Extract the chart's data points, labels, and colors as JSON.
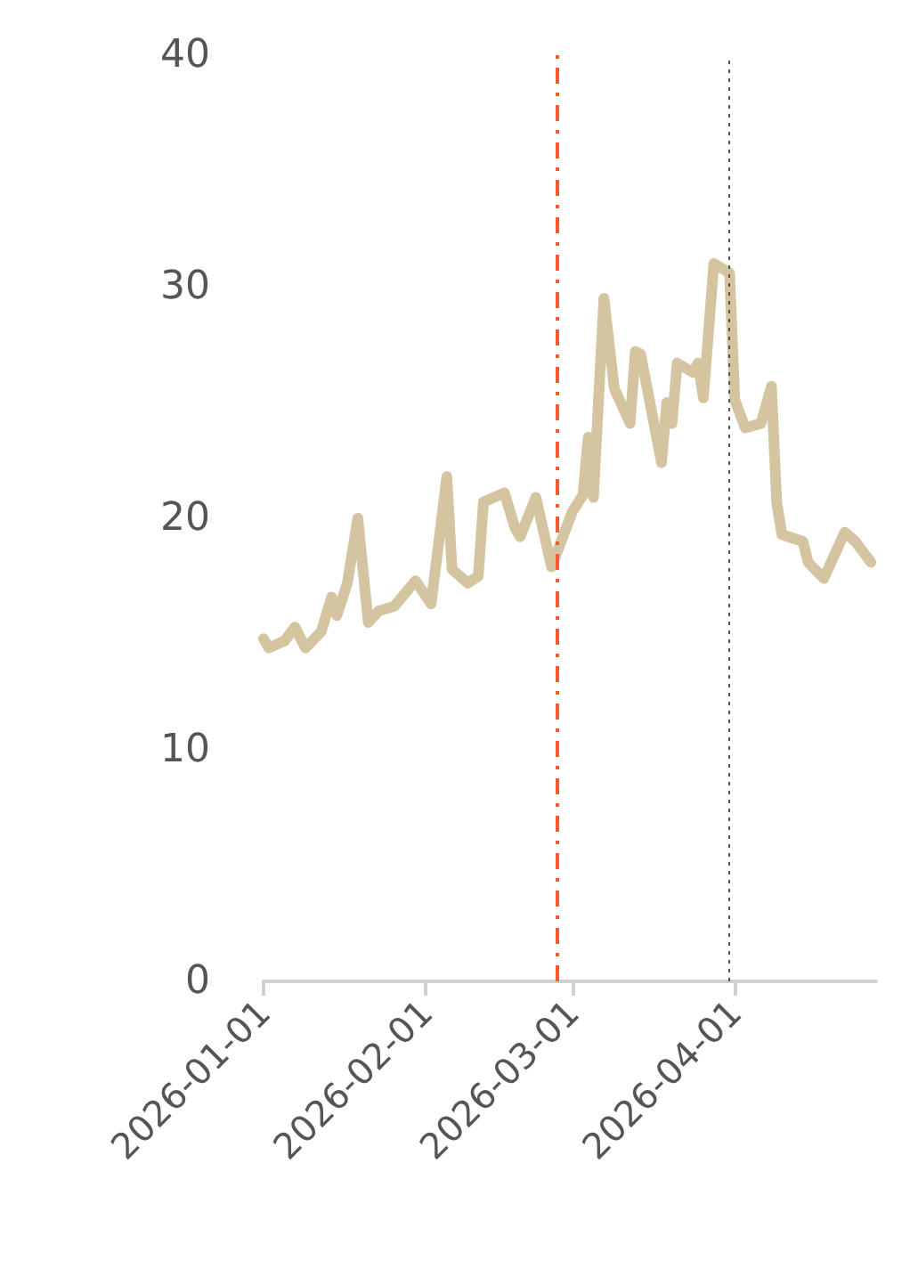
{
  "chart_data": {
    "type": "line",
    "x": [
      "2026-01-01",
      "2026-01-02",
      "2026-01-05",
      "2026-01-07",
      "2026-01-09",
      "2026-01-12",
      "2026-01-14",
      "2026-01-15",
      "2026-01-17",
      "2026-01-19",
      "2026-01-21",
      "2026-01-23",
      "2026-01-26",
      "2026-01-30",
      "2026-02-02",
      "2026-02-05",
      "2026-02-06",
      "2026-02-09",
      "2026-02-11",
      "2026-02-12",
      "2026-02-16",
      "2026-02-18",
      "2026-02-19",
      "2026-02-22",
      "2026-02-25",
      "2026-03-01",
      "2026-03-03",
      "2026-03-04",
      "2026-03-05",
      "2026-03-07",
      "2026-03-09",
      "2026-03-12",
      "2026-03-13",
      "2026-03-14",
      "2026-03-18",
      "2026-03-19",
      "2026-03-20",
      "2026-03-21",
      "2026-03-24",
      "2026-03-25",
      "2026-03-26",
      "2026-03-28",
      "2026-03-31",
      "2026-04-01",
      "2026-04-03",
      "2026-04-06",
      "2026-04-08",
      "2026-04-09",
      "2026-04-10",
      "2026-04-14",
      "2026-04-15",
      "2026-04-18",
      "2026-04-22",
      "2026-04-24",
      "2026-04-27"
    ],
    "series": [
      {
        "color": "#d4c4a0",
        "values": [
          14.8,
          14.4,
          14.7,
          15.3,
          14.4,
          15.1,
          16.6,
          15.8,
          17.2,
          20.0,
          15.5,
          16.0,
          16.2,
          17.3,
          16.3,
          21.8,
          17.8,
          17.2,
          17.5,
          20.7,
          21.1,
          19.6,
          19.2,
          20.9,
          17.9,
          20.3,
          21.0,
          23.5,
          20.9,
          29.5,
          25.6,
          24.1,
          27.2,
          27.1,
          22.4,
          25.0,
          24.1,
          26.7,
          26.3,
          26.7,
          25.2,
          31.0,
          30.6,
          25.1,
          23.9,
          24.1,
          25.7,
          20.7,
          19.3,
          19.0,
          18.1,
          17.4,
          19.4,
          19.0,
          18.1
        ]
      }
    ],
    "xlim": [
      "2026-01-01",
      "2026-04-28"
    ],
    "xticks": [
      "2026-01-01",
      "2026-02-01",
      "2026-03-01",
      "2026-04-01"
    ],
    "ylim": [
      0,
      40
    ],
    "yticks": [
      0,
      10,
      20,
      30,
      40
    ],
    "grid": false,
    "marker": "none",
    "line_style": "solid",
    "ref_lines": [
      {
        "axis": "x",
        "value": "2026-02-26",
        "color": "#ff5a2a",
        "line_style": "dashed"
      },
      {
        "axis": "x",
        "value": "2026-03-31",
        "color": "#555555",
        "line_style": "dotted"
      }
    ]
  }
}
